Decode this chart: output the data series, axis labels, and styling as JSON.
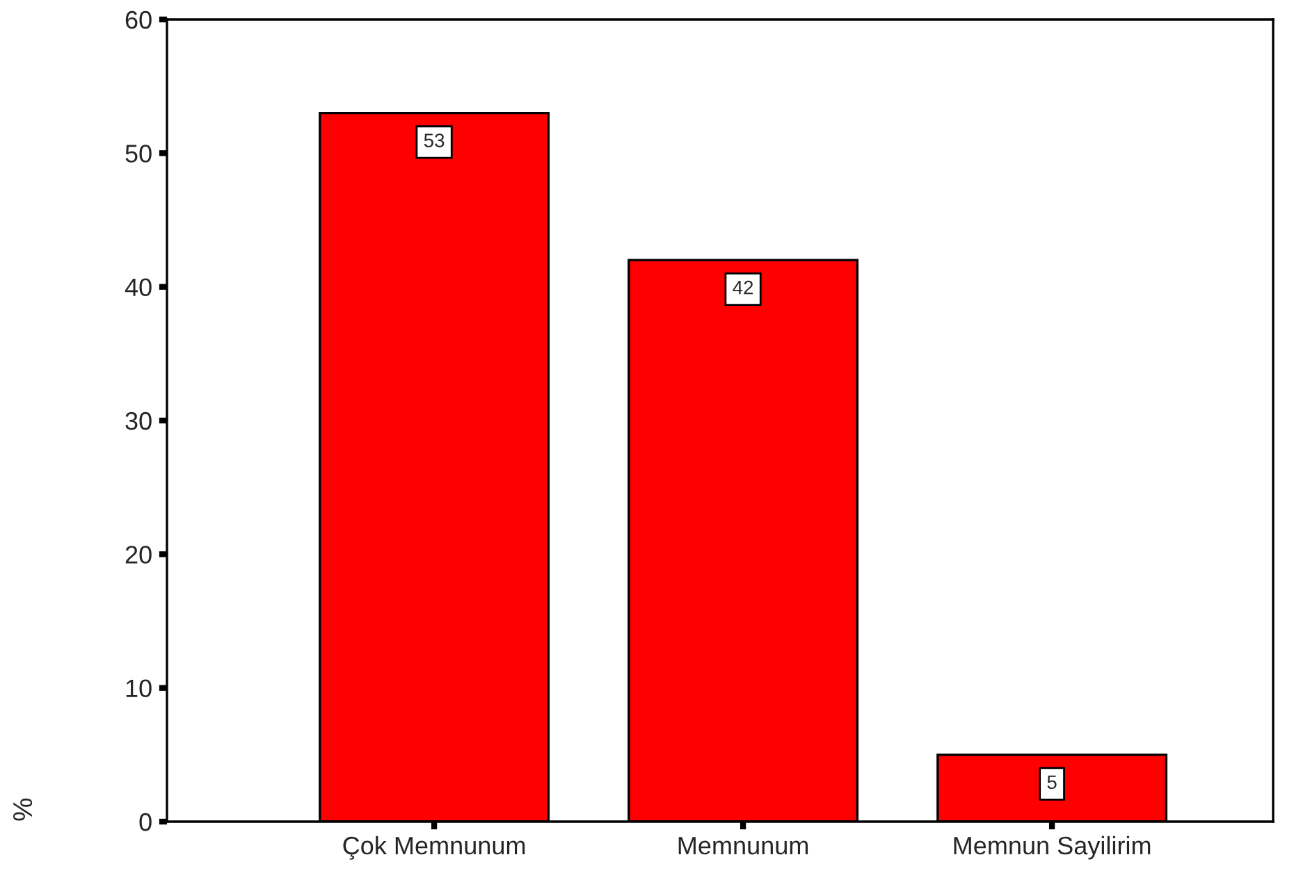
{
  "chart_data": {
    "type": "bar",
    "ylabel": "%",
    "categories": [
      "Çok Memnunum",
      "Memnunum",
      "Memnun Sayilirim"
    ],
    "values": [
      53,
      42,
      5
    ],
    "color": "#ff0000",
    "ylim": [
      0,
      60
    ],
    "yticks": [
      0,
      10,
      20,
      30,
      40,
      50,
      60
    ],
    "data_labels": true,
    "grid": false,
    "legend": false
  }
}
